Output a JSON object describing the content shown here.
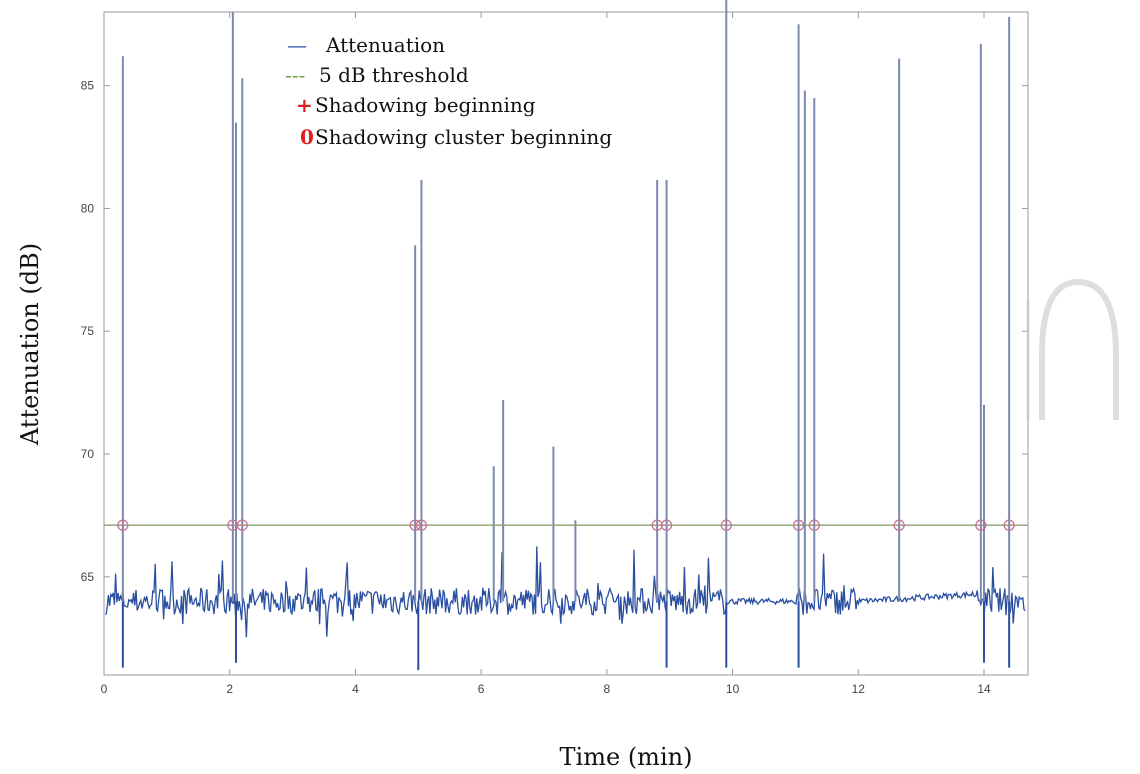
{
  "chart_data": {
    "type": "line",
    "xlabel": "Time (min)",
    "ylabel": "Attenuation (dB)",
    "xlim": [
      0,
      14.7
    ],
    "ylim": [
      61,
      88
    ],
    "x_ticks": [
      0,
      2,
      4,
      6,
      8,
      10,
      12,
      14
    ],
    "y_ticks": [
      65,
      70,
      75,
      80,
      85
    ],
    "grid": false,
    "legend_position": "top-left",
    "colors": {
      "attenuation": "#2a4fa0",
      "spike": "#7a8ab0",
      "threshold": "#8aa070",
      "marker": "#c07890",
      "cluster_text": "#e02020",
      "axis": "#9a9a9a"
    },
    "series": [
      {
        "name": "Attenuation",
        "baseline": 64,
        "noise_band": [
          63.4,
          64.6
        ],
        "spikes": [
          {
            "x": 0.3,
            "y": 86.2
          },
          {
            "x": 2.05,
            "y": 88
          },
          {
            "x": 2.1,
            "y": 83.5
          },
          {
            "x": 2.2,
            "y": 85.3
          },
          {
            "x": 4.95,
            "y": 78.5
          },
          {
            "x": 5.05,
            "y": 82.2
          },
          {
            "x": 6.2,
            "y": 69.5
          },
          {
            "x": 6.35,
            "y": 72.2
          },
          {
            "x": 7.15,
            "y": 70.3
          },
          {
            "x": 7.5,
            "y": 67.3
          },
          {
            "x": 8.8,
            "y": 82.4
          },
          {
            "x": 8.95,
            "y": 82.2
          },
          {
            "x": 9.9,
            "y": 88.5
          },
          {
            "x": 11.05,
            "y": 87.5
          },
          {
            "x": 11.15,
            "y": 84.8
          },
          {
            "x": 11.3,
            "y": 84.5
          },
          {
            "x": 12.65,
            "y": 86.1
          },
          {
            "x": 13.95,
            "y": 86.7
          },
          {
            "x": 14.0,
            "y": 72.0
          },
          {
            "x": 14.4,
            "y": 87.8
          }
        ],
        "dips": [
          {
            "x": 0.3,
            "y": 61.3
          },
          {
            "x": 2.1,
            "y": 61.5
          },
          {
            "x": 5.0,
            "y": 61.2
          },
          {
            "x": 8.95,
            "y": 61.3
          },
          {
            "x": 9.9,
            "y": 61.3
          },
          {
            "x": 11.05,
            "y": 61.3
          },
          {
            "x": 14.0,
            "y": 61.5
          },
          {
            "x": 14.4,
            "y": 61.3
          }
        ]
      },
      {
        "name": "5 dB threshold",
        "y": 67.1
      },
      {
        "name": "Shadowing beginning",
        "x": [
          0.3,
          2.05,
          2.2,
          4.95,
          5.05,
          8.8,
          8.95,
          9.9,
          11.05,
          11.3,
          12.65,
          13.95,
          14.4
        ],
        "y": 67.1
      }
    ],
    "legend": [
      {
        "symbol": "—",
        "label": "Attenuation"
      },
      {
        "symbol": "---",
        "label": "5 dB threshold"
      },
      {
        "symbol": "+",
        "label": "Shadowing beginning"
      },
      {
        "symbol": "0",
        "label": "Shadowing cluster beginning"
      }
    ]
  }
}
